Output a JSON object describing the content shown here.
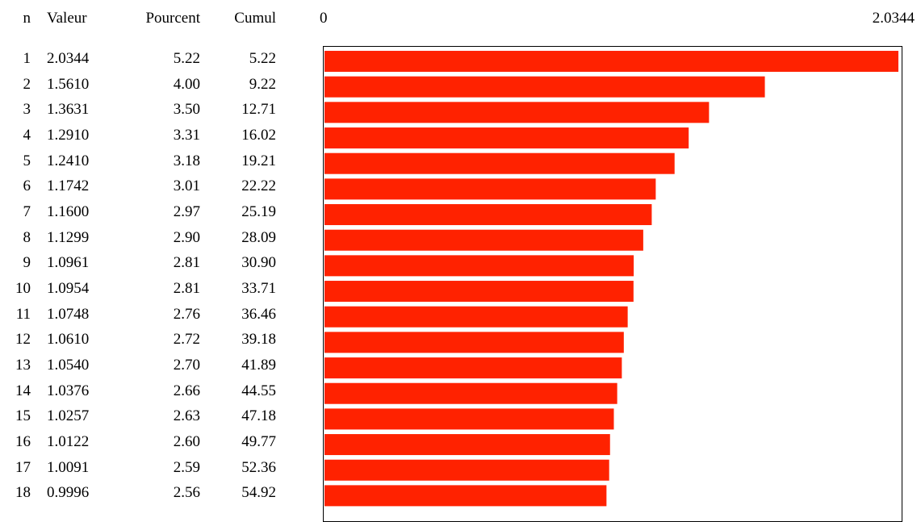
{
  "chart_data": {
    "type": "bar",
    "orientation": "horizontal",
    "columns": [
      "n",
      "Valeur",
      "Pourcent",
      "Cumul"
    ],
    "axis_min_label": "0",
    "axis_max_label": "2.0344",
    "xlim": [
      0,
      2.0344
    ],
    "bar_color": "#ff2200",
    "rows": [
      {
        "n": "1",
        "value": "2.0344",
        "pct": "5.22",
        "cum": "5.22"
      },
      {
        "n": "2",
        "value": "1.5610",
        "pct": "4.00",
        "cum": "9.22"
      },
      {
        "n": "3",
        "value": "1.3631",
        "pct": "3.50",
        "cum": "12.71"
      },
      {
        "n": "4",
        "value": "1.2910",
        "pct": "3.31",
        "cum": "16.02"
      },
      {
        "n": "5",
        "value": "1.2410",
        "pct": "3.18",
        "cum": "19.21"
      },
      {
        "n": "6",
        "value": "1.1742",
        "pct": "3.01",
        "cum": "22.22"
      },
      {
        "n": "7",
        "value": "1.1600",
        "pct": "2.97",
        "cum": "25.19"
      },
      {
        "n": "8",
        "value": "1.1299",
        "pct": "2.90",
        "cum": "28.09"
      },
      {
        "n": "9",
        "value": "1.0961",
        "pct": "2.81",
        "cum": "30.90"
      },
      {
        "n": "10",
        "value": "1.0954",
        "pct": "2.81",
        "cum": "33.71"
      },
      {
        "n": "11",
        "value": "1.0748",
        "pct": "2.76",
        "cum": "36.46"
      },
      {
        "n": "12",
        "value": "1.0610",
        "pct": "2.72",
        "cum": "39.18"
      },
      {
        "n": "13",
        "value": "1.0540",
        "pct": "2.70",
        "cum": "41.89"
      },
      {
        "n": "14",
        "value": "1.0376",
        "pct": "2.66",
        "cum": "44.55"
      },
      {
        "n": "15",
        "value": "1.0257",
        "pct": "2.63",
        "cum": "47.18"
      },
      {
        "n": "16",
        "value": "1.0122",
        "pct": "2.60",
        "cum": "49.77"
      },
      {
        "n": "17",
        "value": "1.0091",
        "pct": "2.59",
        "cum": "52.36"
      },
      {
        "n": "18",
        "value": "0.9996",
        "pct": "2.56",
        "cum": "54.92"
      }
    ]
  }
}
